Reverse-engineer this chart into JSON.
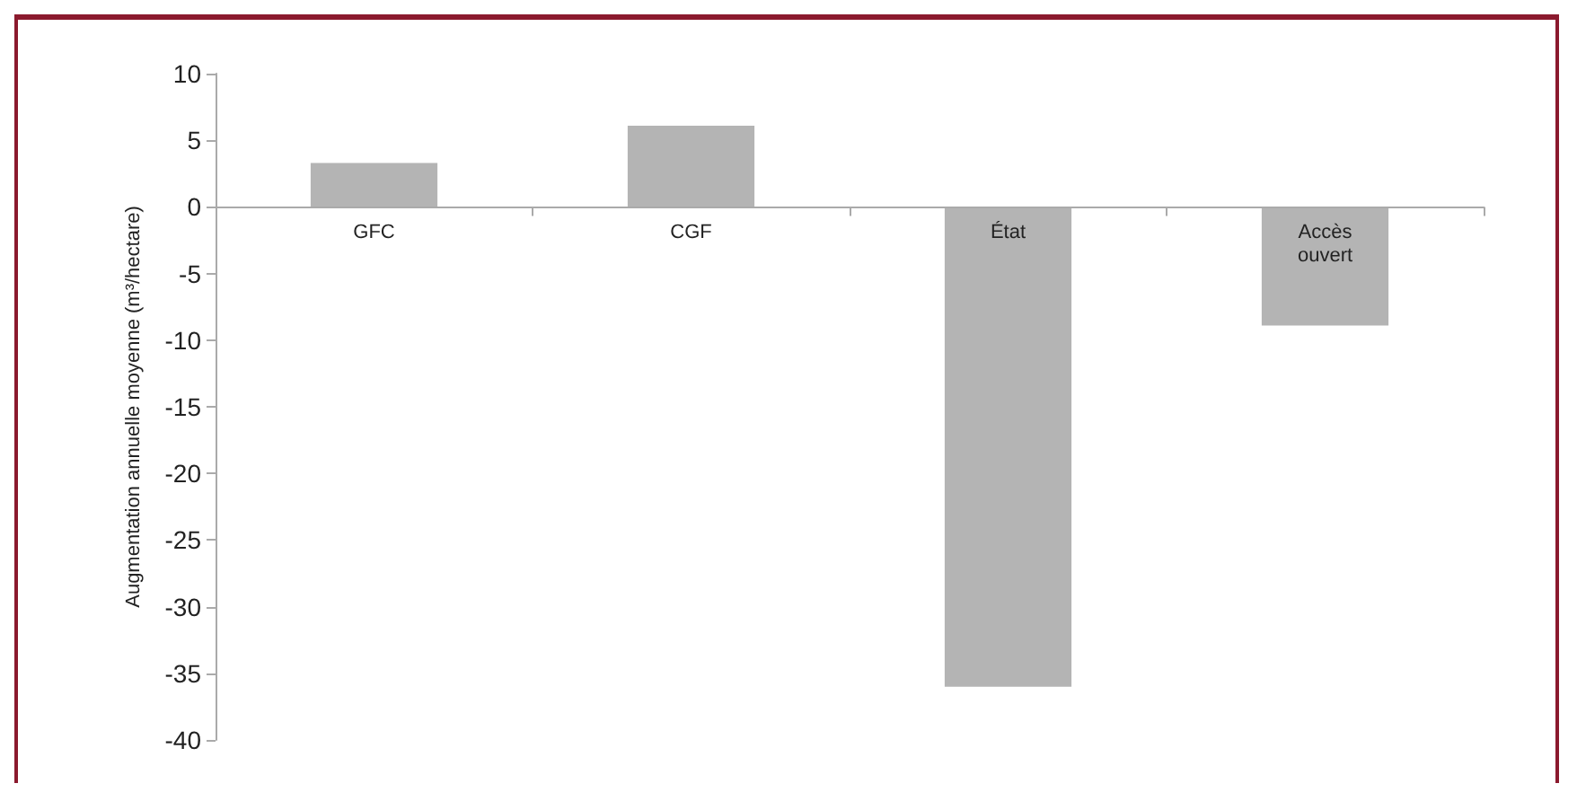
{
  "chart_data": {
    "type": "bar",
    "ylabel": "Augmentation annuelle moyenne (m³/hectare)",
    "categories": [
      "GFC",
      "CGF",
      "État",
      "Accès\nouvert"
    ],
    "values": [
      3.3,
      6.1,
      -36,
      -8.9
    ],
    "color": "#b4b4b4",
    "ylim": [
      -40,
      10
    ],
    "yticks": [
      -40,
      -35,
      -30,
      -25,
      -20,
      -15,
      -10,
      -5,
      0,
      5,
      10
    ],
    "grid": false
  }
}
